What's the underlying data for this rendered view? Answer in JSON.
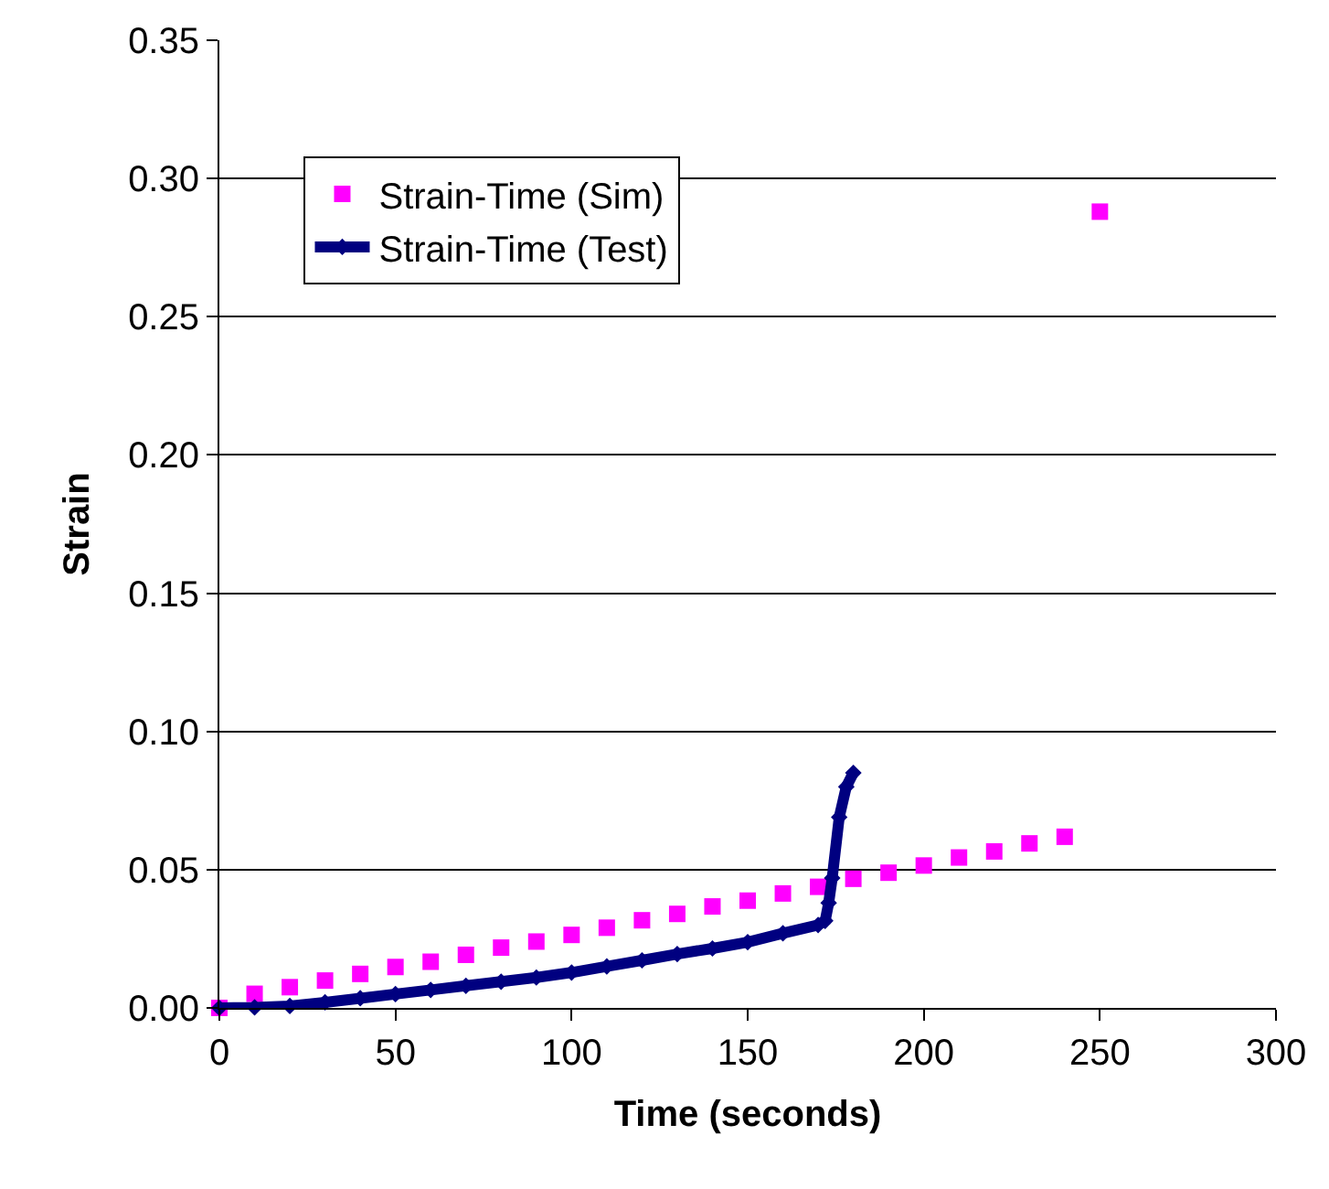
{
  "chart_data": {
    "type": "scatter",
    "xlabel": "Time (seconds)",
    "ylabel": "Strain",
    "xlim": [
      0,
      300
    ],
    "xticks": [
      0,
      50,
      100,
      150,
      200,
      250,
      300
    ],
    "ylim": [
      0,
      0.35
    ],
    "yticks": [
      {
        "value": 0,
        "label": "0.00"
      },
      {
        "value": 0.05,
        "label": "0.05"
      },
      {
        "value": 0.1,
        "label": "0.10"
      },
      {
        "value": 0.15,
        "label": "0.15"
      },
      {
        "value": 0.2,
        "label": "0.20"
      },
      {
        "value": 0.25,
        "label": "0.25"
      },
      {
        "value": 0.3,
        "label": "0.30"
      },
      {
        "value": 0.35,
        "label": "0.35"
      }
    ],
    "grid": "y",
    "legend": "top left",
    "series": [
      {
        "name": "Strain-Time (Sim)",
        "marker": "square",
        "color": "#ff00ff",
        "x": [
          0,
          10,
          20,
          30,
          40,
          50,
          60,
          70,
          80,
          90,
          100,
          110,
          120,
          130,
          140,
          150,
          160,
          170,
          180,
          190,
          200,
          210,
          220,
          230,
          240,
          250
        ],
        "values": [
          0,
          0.0051,
          0.0075,
          0.0099,
          0.0123,
          0.0148,
          0.0167,
          0.0192,
          0.0218,
          0.024,
          0.0264,
          0.029,
          0.0317,
          0.034,
          0.0367,
          0.0388,
          0.0414,
          0.0438,
          0.0467,
          0.0489,
          0.0515,
          0.0544,
          0.0566,
          0.0595,
          0.0619,
          0.288
        ]
      },
      {
        "name": "Strain-Time (Test)",
        "type": "line",
        "marker": "diamond",
        "color": "#000080",
        "x": [
          0,
          10,
          20,
          30,
          40,
          50,
          60,
          70,
          80,
          90,
          100,
          110,
          120,
          130,
          140,
          150,
          160,
          170,
          172,
          173,
          174,
          176,
          178,
          180
        ],
        "values": [
          0,
          0.0002,
          0.0007,
          0.002,
          0.0035,
          0.005,
          0.0065,
          0.008,
          0.0095,
          0.011,
          0.0128,
          0.015,
          0.0172,
          0.0195,
          0.0215,
          0.0238,
          0.027,
          0.03,
          0.0315,
          0.038,
          0.047,
          0.069,
          0.08,
          0.085
        ]
      }
    ]
  }
}
